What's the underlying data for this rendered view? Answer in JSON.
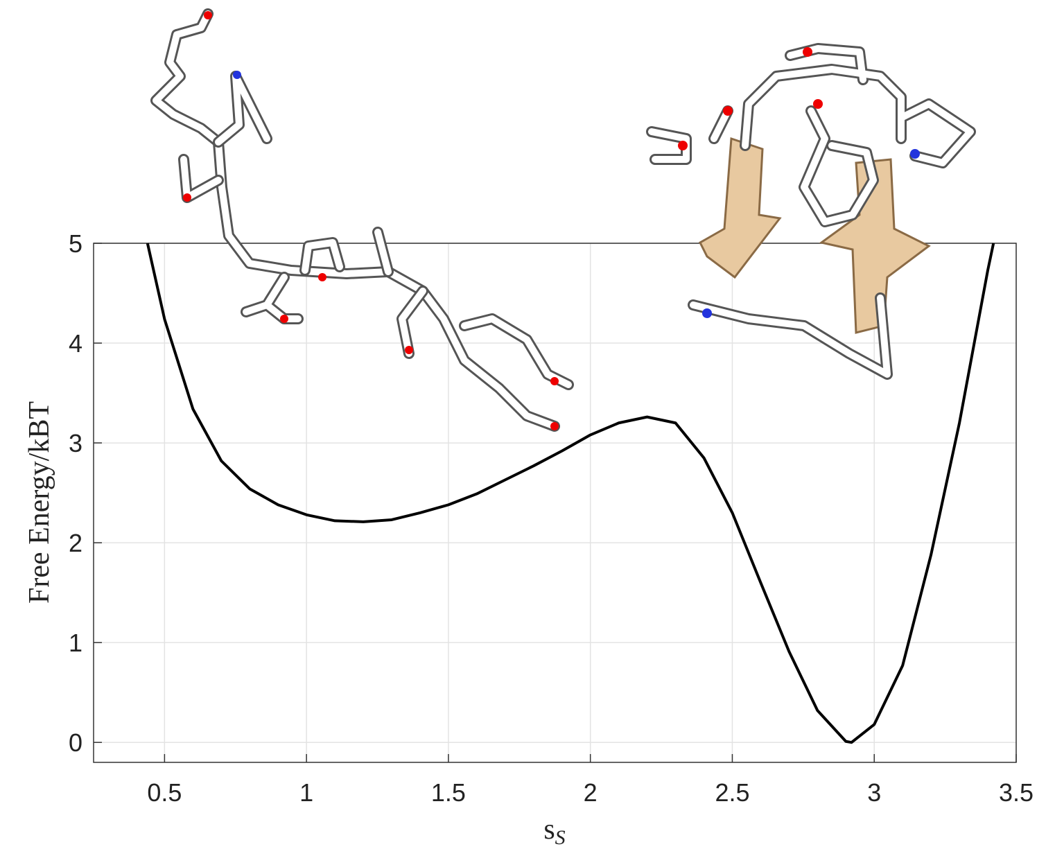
{
  "chart_data": {
    "type": "line",
    "xlabel": "s",
    "xlabel_subscript": "S",
    "ylabel": "Free Energy/kBT",
    "x": [
      0.44,
      0.5,
      0.6,
      0.7,
      0.8,
      0.9,
      1.0,
      1.1,
      1.2,
      1.3,
      1.4,
      1.5,
      1.6,
      1.7,
      1.8,
      1.9,
      2.0,
      2.1,
      2.2,
      2.3,
      2.4,
      2.5,
      2.6,
      2.7,
      2.8,
      2.9,
      2.92,
      3.0,
      3.1,
      3.2,
      3.3,
      3.4,
      3.42
    ],
    "series": [
      {
        "name": "free energy",
        "color": "#000000",
        "values": [
          5,
          4.24,
          3.34,
          2.82,
          2.54,
          2.38,
          2.28,
          2.22,
          2.21,
          2.23,
          2.3,
          2.38,
          2.49,
          2.63,
          2.77,
          2.92,
          3.08,
          3.2,
          3.26,
          3.2,
          2.85,
          2.3,
          1.6,
          0.91,
          0.32,
          0.01,
          0,
          0.18,
          0.77,
          1.88,
          3.2,
          4.73,
          5
        ]
      }
    ],
    "xlim": [
      0.25,
      3.5
    ],
    "xticks": [
      0.5,
      1,
      1.5,
      2,
      2.5,
      3,
      3.5
    ],
    "ylim": [
      -0.2,
      5
    ],
    "yticks": [
      0,
      1,
      2,
      3,
      4,
      5
    ],
    "grid": true
  }
}
